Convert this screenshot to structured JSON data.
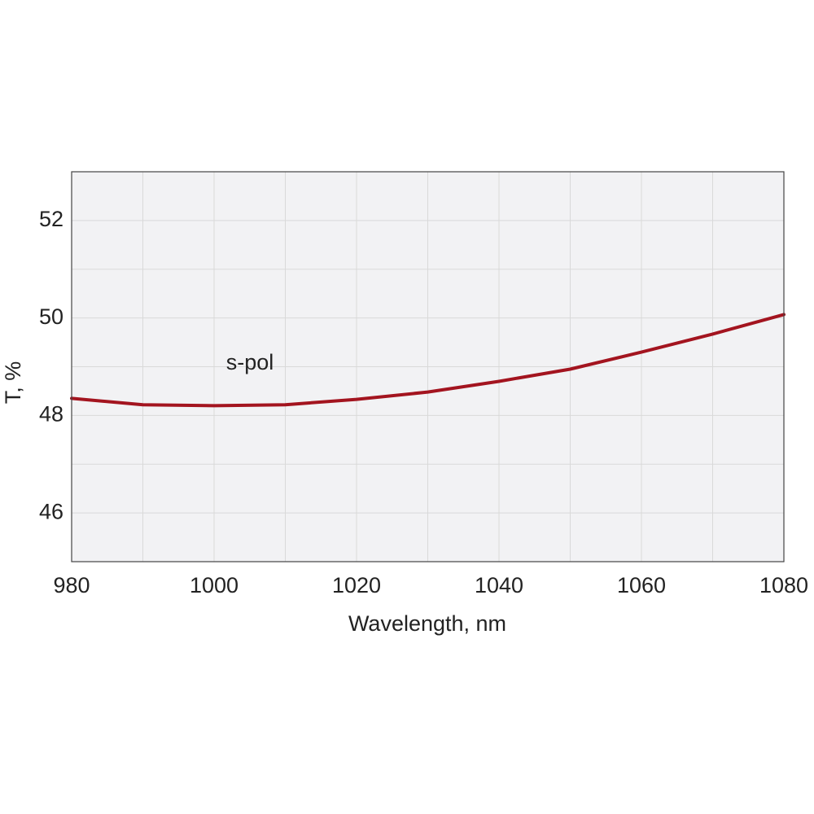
{
  "chart_data": {
    "type": "line",
    "x_label": "Wavelength, nm",
    "y_label": "T, %",
    "annotation": "s-pol",
    "x": [
      980,
      990,
      1000,
      1010,
      1020,
      1030,
      1040,
      1050,
      1060,
      1070,
      1080
    ],
    "series": [
      {
        "color": "#a3141f",
        "values": [
          48.35,
          48.22,
          48.2,
          48.22,
          48.33,
          48.48,
          48.7,
          48.95,
          49.3,
          49.67,
          50.07
        ]
      }
    ],
    "xlim": [
      980,
      1080
    ],
    "ylim": [
      45,
      53
    ],
    "xticks": [
      980,
      1000,
      1020,
      1040,
      1060,
      1080
    ],
    "yticks": [
      46,
      48,
      50,
      52
    ],
    "x_minor_grid": [
      990,
      1010,
      1030,
      1050,
      1070
    ],
    "y_minor_grid": [
      45,
      47,
      49,
      51,
      53
    ],
    "grid": true
  }
}
